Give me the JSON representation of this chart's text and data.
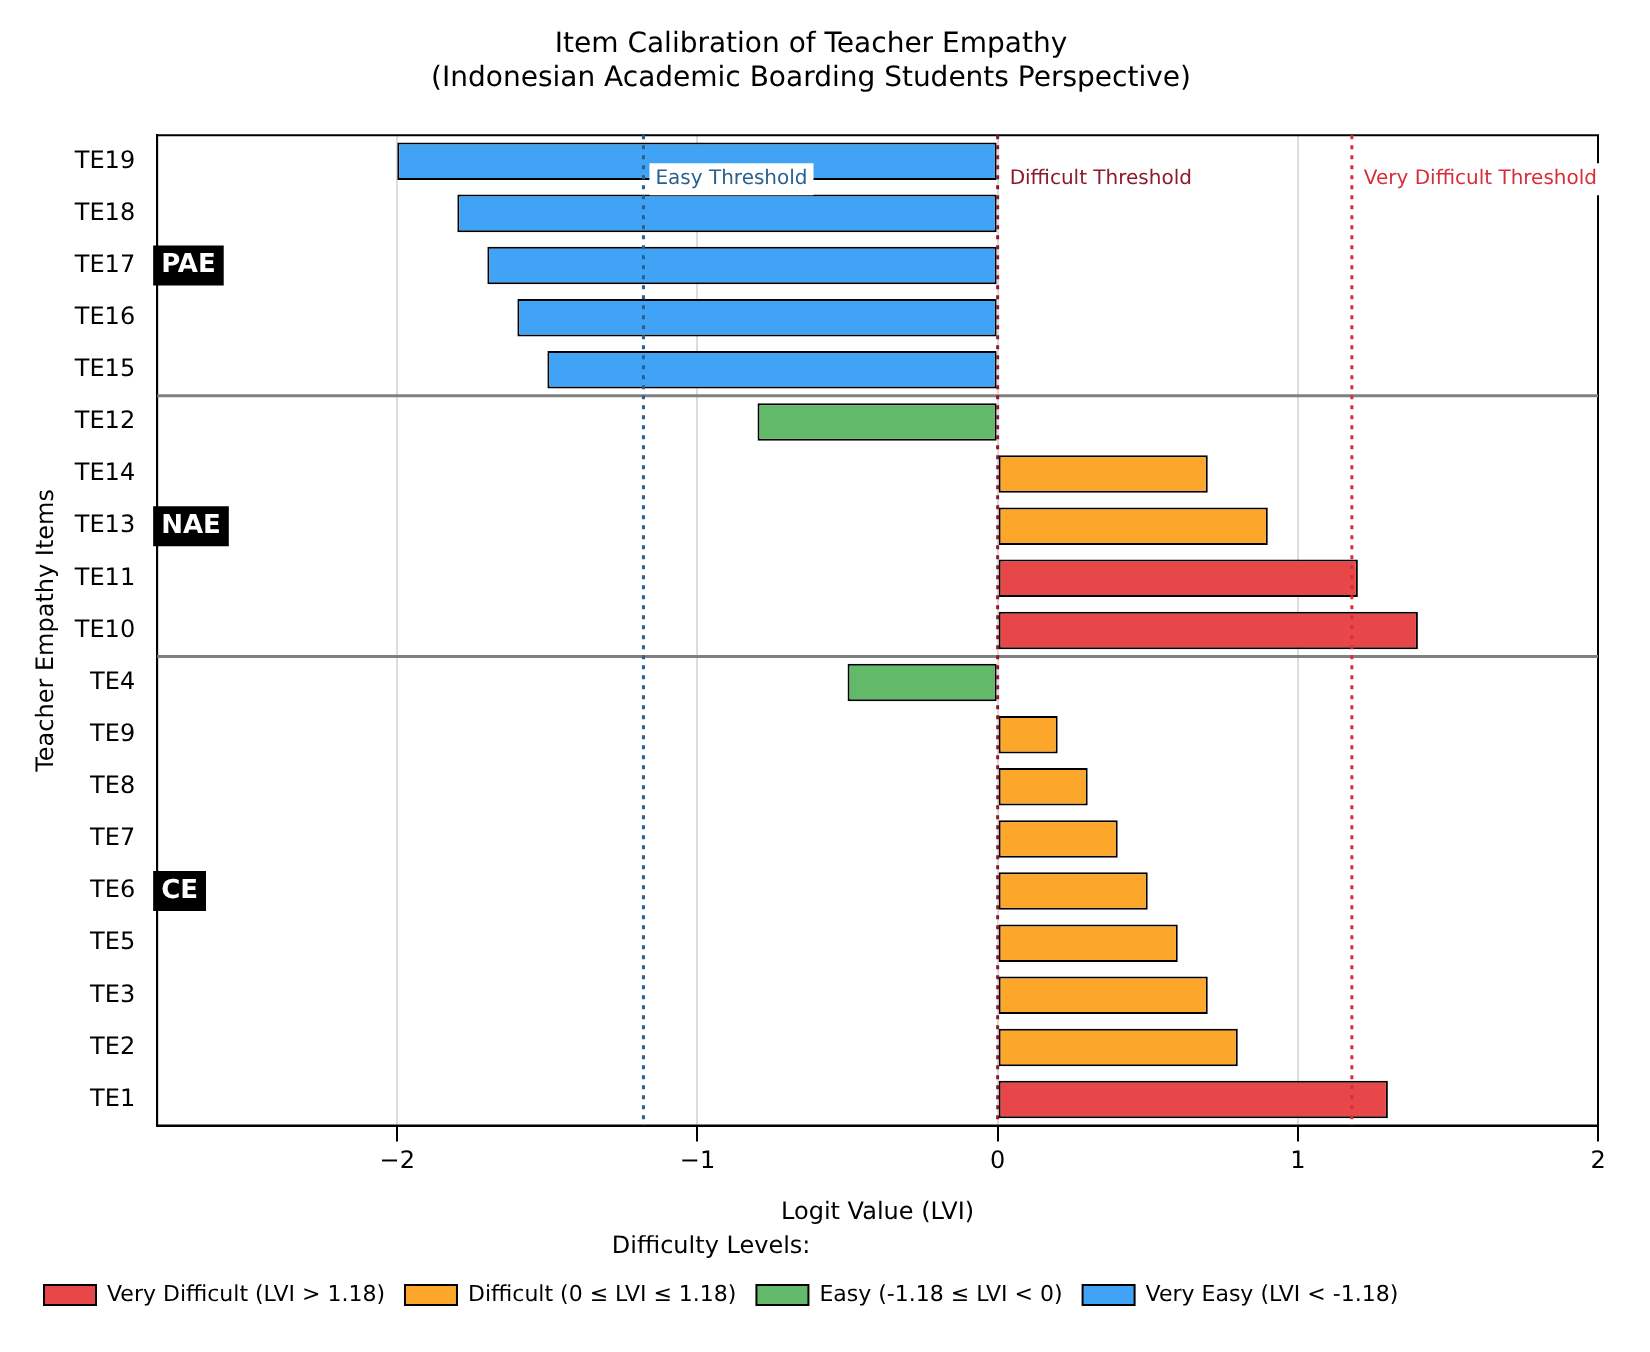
{
  "chart_data": {
    "type": "bar",
    "orientation": "horizontal",
    "stacked": true,
    "title": "Item Calibration of Teacher Empathy",
    "subtitle": "(Indonesian Academic Boarding Students Perspective)",
    "xlabel": "Logit Value (LVI)",
    "ylabel": "Teacher Empathy Items",
    "legend_title": "Difficulty Levels:",
    "categories": [
      "TE19",
      "TE18",
      "TE17",
      "TE16",
      "TE15",
      "TE12",
      "TE14",
      "TE13",
      "TE11",
      "TE10",
      "TE4",
      "TE9",
      "TE8",
      "TE7",
      "TE6",
      "TE5",
      "TE3",
      "TE2",
      "TE1"
    ],
    "series": [
      {
        "name": "Very Difficult (LVI > 1.18)",
        "color": "#e8474a",
        "values": [
          null,
          null,
          null,
          null,
          null,
          null,
          null,
          null,
          1.2,
          1.4,
          null,
          null,
          null,
          null,
          null,
          null,
          null,
          null,
          1.3
        ]
      },
      {
        "name": "Difficult (0 ≤ LVI ≤ 1.18)",
        "color": "#fca72a",
        "values": [
          null,
          null,
          null,
          null,
          null,
          null,
          0.7,
          0.9,
          null,
          null,
          null,
          0.2,
          0.3,
          0.4,
          0.5,
          0.6,
          0.7,
          0.8,
          null
        ]
      },
      {
        "name": "Easy (-1.18 ≤ LVI < 0)",
        "color": "#63b96a",
        "values": [
          null,
          null,
          null,
          null,
          null,
          -0.8,
          null,
          null,
          null,
          null,
          -0.5,
          null,
          null,
          null,
          null,
          null,
          null,
          null,
          null
        ]
      },
      {
        "name": "Very Easy (LVI < -1.18)",
        "color": "#41a3f5",
        "values": [
          -2.0,
          -1.8,
          -1.7,
          -1.6,
          -1.5,
          null,
          null,
          null,
          null,
          null,
          null,
          null,
          null,
          null,
          null,
          null,
          null,
          null,
          null
        ]
      }
    ],
    "xlim": [
      -2.8,
      2
    ],
    "xticks": [
      -2,
      -1,
      0,
      1,
      2
    ],
    "grid": "x",
    "legend": "bottom left",
    "ref_lines": [
      {
        "axis": "x",
        "value": -1.18,
        "label": "Easy Threshold",
        "color": "#2a5f8f",
        "line_style": "dotted"
      },
      {
        "axis": "x",
        "value": 0,
        "label": "Difficult Threshold",
        "color": "#8b1a2b",
        "line_style": "dotted"
      },
      {
        "axis": "x",
        "value": 1.18,
        "label": "Very Difficult Threshold",
        "color": "#d62f3a",
        "line_style": "dotted"
      }
    ],
    "annotations": [
      {
        "text": "PAE",
        "y": "TE17"
      },
      {
        "text": "NAE",
        "y": "TE13"
      },
      {
        "text": "CE",
        "y": "TE6"
      }
    ]
  }
}
